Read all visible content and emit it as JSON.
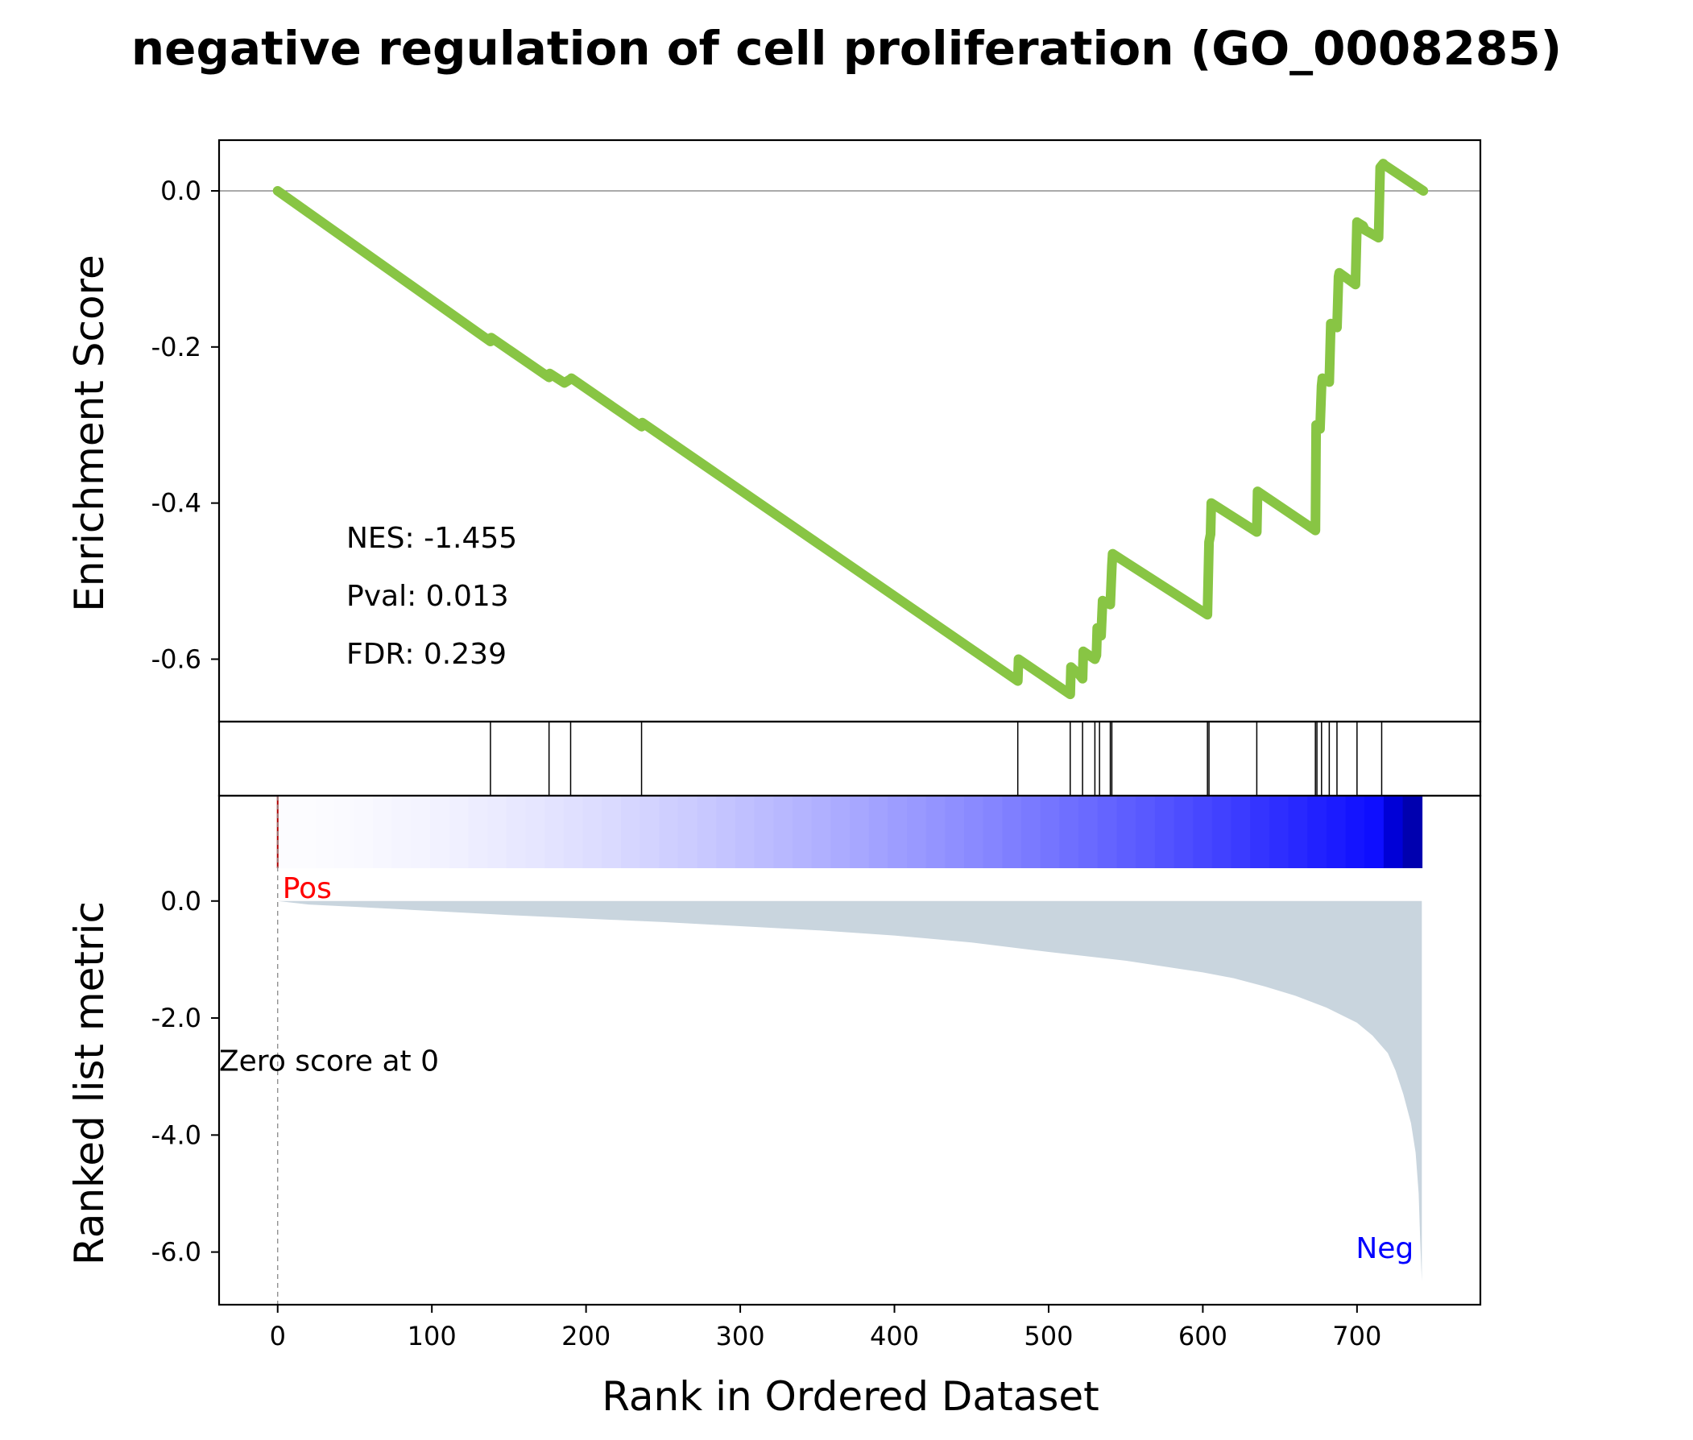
{
  "chart_data": {
    "type": "line",
    "title": "negative regulation of cell proliferation (GO_0008285)",
    "colors": {
      "es_line": "#88c544",
      "metric_fill": "#c9d5de",
      "pos_label": "#ff0000",
      "neg_label": "#0000ff",
      "hit_line": "#000000"
    },
    "xlabel": "Rank in Ordered Dataset",
    "xlim": [
      -38,
      780
    ],
    "x_ticks": [
      "0",
      "100",
      "200",
      "300",
      "400",
      "500",
      "600",
      "700"
    ],
    "n_genes": 742,
    "enrichment_panel": {
      "ylabel": "Enrichment Score",
      "ylim": [
        -0.68,
        0.065
      ],
      "y_ticks": [
        "0.0",
        "-0.2",
        "-0.4",
        "-0.6"
      ],
      "stats": {
        "nes": "NES: -1.455",
        "pval": "Pval: 0.013",
        "fdr": "FDR: 0.239"
      },
      "running_es": {
        "x": [
          0,
          138,
          138.5,
          176,
          176.5,
          186,
          190,
          190.5,
          236,
          236.5,
          480,
          480.5,
          514,
          514.5,
          520,
          522,
          522.5,
          530,
          531,
          531.5,
          534,
          535,
          540,
          541,
          541.5,
          603,
          604,
          605,
          605.5,
          635,
          635.5,
          673,
          673.5,
          676,
          677,
          677.5,
          682,
          683,
          687,
          688,
          688.5,
          699,
          700,
          704,
          705,
          714,
          715,
          717,
          718,
          743
        ],
        "y": [
          0.0,
          -0.193,
          -0.188,
          -0.239,
          -0.234,
          -0.246,
          -0.241,
          -0.24,
          -0.302,
          -0.297,
          -0.628,
          -0.6,
          -0.645,
          -0.61,
          -0.62,
          -0.625,
          -0.59,
          -0.6,
          -0.595,
          -0.56,
          -0.57,
          -0.525,
          -0.53,
          -0.48,
          -0.465,
          -0.543,
          -0.45,
          -0.44,
          -0.4,
          -0.437,
          -0.385,
          -0.435,
          -0.3,
          -0.305,
          -0.25,
          -0.24,
          -0.245,
          -0.17,
          -0.175,
          -0.11,
          -0.105,
          -0.12,
          -0.04,
          -0.045,
          -0.05,
          -0.06,
          0.03,
          0.035,
          0.033,
          0.0
        ]
      }
    },
    "hit_ranks": [
      138,
      176,
      190,
      236,
      480,
      514,
      522,
      530,
      533,
      540,
      541,
      603,
      604,
      635,
      673,
      674,
      677,
      682,
      687,
      700,
      716
    ],
    "metric_panel": {
      "ylabel": "Ranked list metric",
      "ylim": [
        -6.9,
        1.8
      ],
      "y_ticks": [
        "0.0",
        "-2.0",
        "-4.0",
        "-6.0"
      ],
      "pos_label": "Pos",
      "neg_label": "Neg",
      "zero_label": "Zero score at 0",
      "metric_curve": {
        "rank": [
          0,
          20,
          50,
          100,
          150,
          200,
          250,
          300,
          350,
          400,
          450,
          500,
          550,
          600,
          620,
          640,
          660,
          680,
          700,
          710,
          720,
          725,
          730,
          735,
          738,
          740,
          741,
          742
        ],
        "value": [
          0.0,
          -0.06,
          -0.1,
          -0.17,
          -0.24,
          -0.3,
          -0.36,
          -0.43,
          -0.5,
          -0.59,
          -0.71,
          -0.87,
          -1.02,
          -1.22,
          -1.32,
          -1.46,
          -1.62,
          -1.82,
          -2.08,
          -2.3,
          -2.6,
          -2.9,
          -3.3,
          -3.8,
          -4.3,
          -5.0,
          -5.8,
          -6.5
        ]
      }
    }
  }
}
